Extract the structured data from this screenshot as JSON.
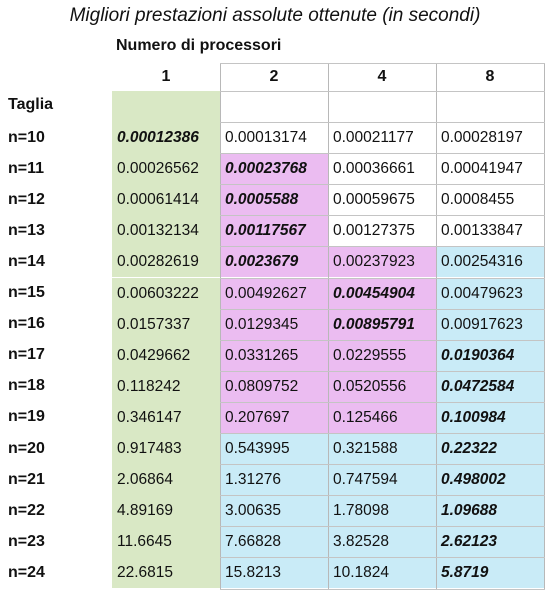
{
  "title": "Migliori prestazioni assolute ottenute (in secondi)",
  "column_group_label": "Numero di processori",
  "row_group_label": "Taglia",
  "columns": [
    "1",
    "2",
    "4",
    "8"
  ],
  "colors": {
    "green": "#d9e8c5",
    "pink": "#ebbcf1",
    "blue": "#c9ebf7",
    "white": "#ffffff"
  },
  "rows": [
    {
      "label": "n=10",
      "values": [
        "0.00012386",
        "0.00013174",
        "0.00021177",
        "0.00028197"
      ],
      "best": 0,
      "colors": [
        "green",
        "white",
        "white",
        "white"
      ]
    },
    {
      "label": "n=11",
      "values": [
        "0.00026562",
        "0.00023768",
        "0.00036661",
        "0.00041947"
      ],
      "best": 1,
      "colors": [
        "green",
        "pink",
        "white",
        "white"
      ]
    },
    {
      "label": "n=12",
      "values": [
        "0.00061414",
        "0.0005588",
        "0.00059675",
        "0.0008455"
      ],
      "best": 1,
      "colors": [
        "green",
        "pink",
        "white",
        "white"
      ]
    },
    {
      "label": "n=13",
      "values": [
        "0.00132134",
        "0.00117567",
        "0.00127375",
        "0.00133847"
      ],
      "best": 1,
      "colors": [
        "green",
        "pink",
        "white",
        "white"
      ]
    },
    {
      "label": "n=14",
      "values": [
        "0.00282619",
        "0.0023679",
        "0.00237923",
        "0.00254316"
      ],
      "best": 1,
      "colors": [
        "green",
        "pink",
        "pink",
        "blue"
      ]
    },
    {
      "label": "n=15",
      "values": [
        "0.00603222",
        "0.00492627",
        "0.00454904",
        "0.00479623"
      ],
      "best": 2,
      "colors": [
        "green",
        "pink",
        "pink",
        "blue"
      ]
    },
    {
      "label": "n=16",
      "values": [
        "0.0157337",
        "0.0129345",
        "0.00895791",
        "0.00917623"
      ],
      "best": 2,
      "colors": [
        "green",
        "pink",
        "pink",
        "blue"
      ]
    },
    {
      "label": "n=17",
      "values": [
        "0.0429662",
        "0.0331265",
        "0.0229555",
        "0.0190364"
      ],
      "best": 3,
      "colors": [
        "green",
        "pink",
        "pink",
        "blue"
      ]
    },
    {
      "label": "n=18",
      "values": [
        "0.118242",
        "0.0809752",
        "0.0520556",
        "0.0472584"
      ],
      "best": 3,
      "colors": [
        "green",
        "pink",
        "pink",
        "blue"
      ]
    },
    {
      "label": "n=19",
      "values": [
        "0.346147",
        "0.207697",
        "0.125466",
        "0.100984"
      ],
      "best": 3,
      "colors": [
        "green",
        "pink",
        "pink",
        "blue"
      ]
    },
    {
      "label": "n=20",
      "values": [
        "0.917483",
        "0.543995",
        "0.321588",
        "0.22322"
      ],
      "best": 3,
      "colors": [
        "green",
        "blue",
        "blue",
        "blue"
      ]
    },
    {
      "label": "n=21",
      "values": [
        "2.06864",
        "1.31276",
        "0.747594",
        "0.498002"
      ],
      "best": 3,
      "colors": [
        "green",
        "blue",
        "blue",
        "blue"
      ]
    },
    {
      "label": "n=22",
      "values": [
        "4.89169",
        "3.00635",
        "1.78098",
        "1.09688"
      ],
      "best": 3,
      "colors": [
        "green",
        "blue",
        "blue",
        "blue"
      ]
    },
    {
      "label": "n=23",
      "values": [
        "11.6645",
        "7.66828",
        "3.82528",
        "2.62123"
      ],
      "best": 3,
      "colors": [
        "green",
        "blue",
        "blue",
        "blue"
      ]
    },
    {
      "label": "n=24",
      "values": [
        "22.6815",
        "15.8213",
        "10.1824",
        "5.8719"
      ],
      "best": 3,
      "colors": [
        "green",
        "blue",
        "blue",
        "blue"
      ]
    }
  ]
}
